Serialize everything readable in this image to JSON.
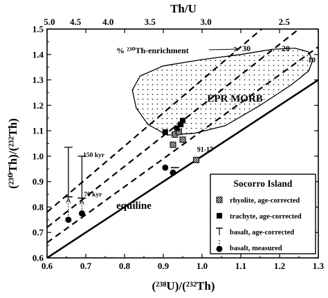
{
  "chart_data": {
    "type": "scatter",
    "title": "",
    "xlabel": "(²³⁸U)/(²³²Th)",
    "ylabel": "(²³⁰Th)/(²³²Th)",
    "x2label": "Th/U",
    "xlim": [
      0.6,
      1.3
    ],
    "ylim": [
      0.6,
      1.5
    ],
    "x_ticks": [
      0.6,
      0.7,
      0.8,
      0.9,
      1.0,
      1.1,
      1.2,
      1.3
    ],
    "y_ticks": [
      0.6,
      0.7,
      0.8,
      0.9,
      1.0,
      1.1,
      1.2,
      1.3,
      1.4,
      1.5
    ],
    "x_tick_labels": [
      "0.6",
      "0.7",
      "0.8",
      "0.9",
      "1.0",
      "1.1",
      "1.2",
      "1.3"
    ],
    "y_tick_labels": [
      "0.6",
      "0.7",
      "0.8",
      "0.9",
      "1.0",
      "1.1",
      "1.2",
      "1.3",
      "1.4",
      "1.5"
    ],
    "top_axis": {
      "ticks": [
        5.0,
        4.5,
        4.0,
        3.5,
        3.0,
        2.5
      ],
      "labels": [
        "5.0",
        "4.5",
        "4.0",
        "3.5",
        "3.0",
        "2.5"
      ],
      "relation": "Th/U = 3.03 / (238U/232Th)"
    },
    "reference_lines": [
      {
        "label": "equiline",
        "enrichment_pct": 0,
        "style": "solid"
      },
      {
        "label": "10",
        "enrichment_pct": 10,
        "style": "dashed"
      },
      {
        "label": "20",
        "enrichment_pct": 20,
        "style": "dashed"
      },
      {
        "label": "30",
        "enrichment_pct": 30,
        "style": "dashed"
      }
    ],
    "enrichment_arrow_label": "% ²³⁰Th-enrichment",
    "region": {
      "label": "EPR MORB",
      "outline": [
        [
          0.91,
          1.083
        ],
        [
          0.98,
          1.09
        ],
        [
          1.06,
          1.12
        ],
        [
          1.15,
          1.2
        ],
        [
          1.23,
          1.28
        ],
        [
          1.275,
          1.335
        ],
        [
          1.285,
          1.375
        ],
        [
          1.275,
          1.41
        ],
        [
          1.24,
          1.425
        ],
        [
          1.18,
          1.42
        ],
        [
          1.1,
          1.4
        ],
        [
          1.0,
          1.38
        ],
        [
          0.9,
          1.355
        ],
        [
          0.84,
          1.315
        ],
        [
          0.82,
          1.26
        ],
        [
          0.83,
          1.19
        ],
        [
          0.86,
          1.125
        ]
      ]
    },
    "series": [
      {
        "name": "rhyolite, age-corrected",
        "marker": "hatched-square",
        "points": [
          {
            "x": 0.925,
            "y": 1.045
          },
          {
            "x": 0.93,
            "y": 1.085
          },
          {
            "x": 0.95,
            "y": 1.065
          },
          {
            "x": 0.94,
            "y": 1.095
          },
          {
            "x": 0.985,
            "y": 0.985
          }
        ]
      },
      {
        "name": "trachyte, age-corrected",
        "marker": "filled-square",
        "points": [
          {
            "x": 0.905,
            "y": 1.095
          },
          {
            "x": 0.935,
            "y": 1.11
          },
          {
            "x": 0.945,
            "y": 1.125
          },
          {
            "x": 0.95,
            "y": 1.14
          }
        ]
      },
      {
        "name": "basalt, age-corrected",
        "marker": "bar",
        "points": [
          {
            "x": 0.655,
            "y": 0.84,
            "y_err_high": 1.035,
            "note": "150 kyr"
          },
          {
            "x": 0.69,
            "y": 0.835,
            "y_err_high": 1.0,
            "note": "70 kyr"
          },
          {
            "x": 0.93,
            "y": 0.955
          }
        ]
      },
      {
        "name": "basalt, measured",
        "marker": "filled-circle",
        "points": [
          {
            "x": 0.655,
            "y": 0.75
          },
          {
            "x": 0.69,
            "y": 0.775
          },
          {
            "x": 0.905,
            "y": 0.955
          },
          {
            "x": 0.925,
            "y": 0.935
          }
        ]
      }
    ],
    "annotations": [
      "91-17",
      "150 kyr",
      "70 kyr",
      "equiline",
      "EPR MORB",
      "30",
      "20",
      "10"
    ],
    "legend": {
      "title": "Socorro Island",
      "placement": "bottom-right",
      "entries": [
        "rhyolite, age-corrected",
        "trachyte, age-corrected",
        "basalt, age-corrected",
        "basalt, measured"
      ]
    },
    "grid": false
  }
}
